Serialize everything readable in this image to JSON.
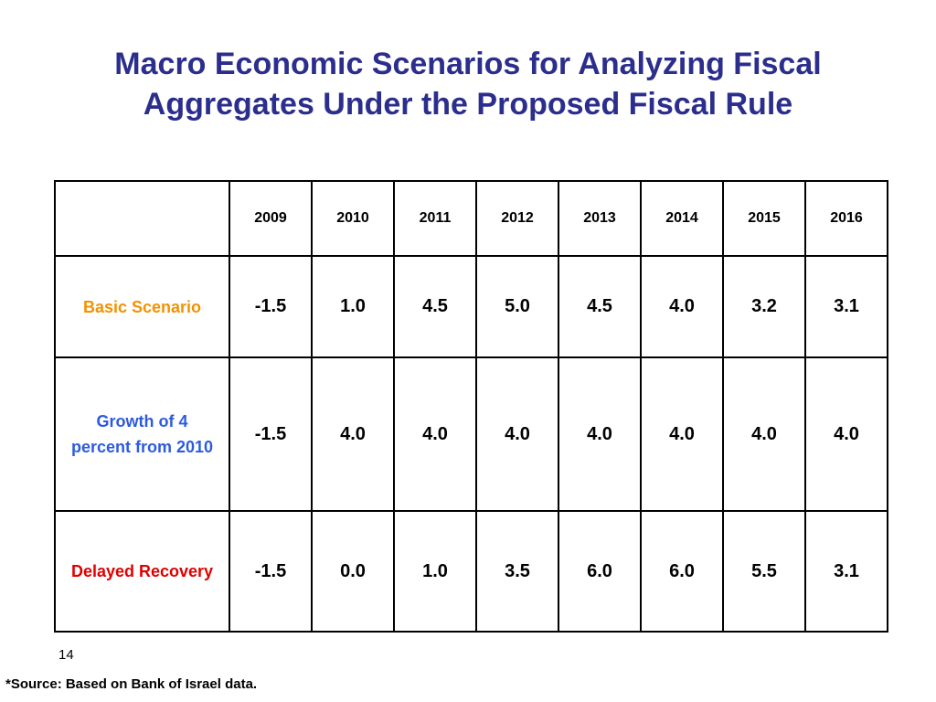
{
  "title": {
    "line1": "Macro Economic Scenarios for Analyzing Fiscal",
    "line2": "Aggregates Under the Proposed Fiscal Rule"
  },
  "table": {
    "years": [
      "2009",
      "2010",
      "2011",
      "2012",
      "2013",
      "2014",
      "2015",
      "2016"
    ],
    "rows": [
      {
        "label": "Basic Scenario",
        "color": "#f39200",
        "values": [
          "-1.5",
          "1.0",
          "4.5",
          "5.0",
          "4.5",
          "4.0",
          "3.2",
          "3.1"
        ]
      },
      {
        "label": "Growth of 4 percent from 2010",
        "color": "#2d5be0",
        "values": [
          "-1.5",
          "4.0",
          "4.0",
          "4.0",
          "4.0",
          "4.0",
          "4.0",
          "4.0"
        ]
      },
      {
        "label": "Delayed Recovery",
        "color": "#e00000",
        "values": [
          "-1.5",
          "0.0",
          "1.0",
          "3.5",
          "6.0",
          "6.0",
          "5.5",
          "3.1"
        ]
      }
    ]
  },
  "slide_number": "14",
  "source_note": "*Source: Based on Bank of Israel data.",
  "colors": {
    "title": "#2b2e8c"
  }
}
